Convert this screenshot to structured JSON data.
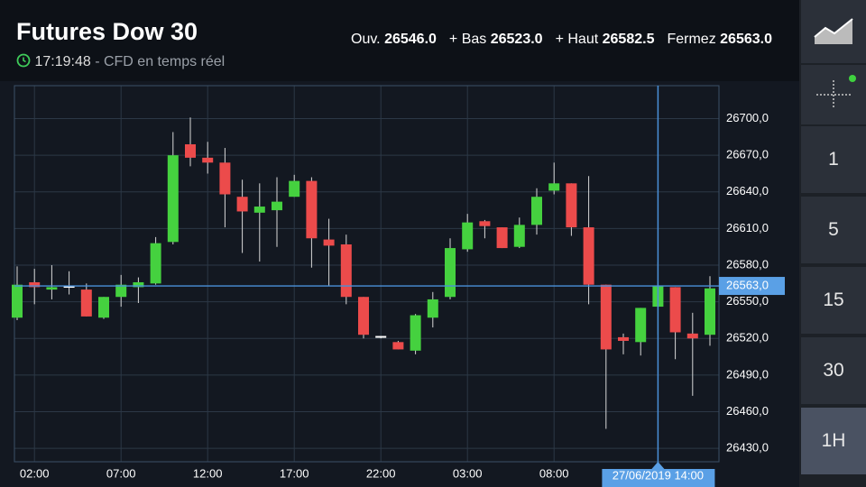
{
  "header": {
    "title": "Futures Dow 30",
    "time": "17:19:48",
    "subtitle": "- CFD en temps réel",
    "stats": [
      {
        "label": "Ouv.",
        "value": "26546.0"
      },
      {
        "label": "+ Bas",
        "value": "26523.0"
      },
      {
        "label": "+ Haut",
        "value": "26582.5"
      },
      {
        "label": "Fermez",
        "value": "26563.0"
      }
    ]
  },
  "sidebar": {
    "buttons": [
      "1",
      "5",
      "15",
      "30",
      "1H"
    ],
    "selected": "1H"
  },
  "chart_data": {
    "type": "candlestick",
    "categories": [
      null,
      "02:00",
      null,
      null,
      null,
      null,
      "07:00",
      null,
      null,
      null,
      null,
      "12:00",
      null,
      null,
      null,
      null,
      "17:00",
      null,
      null,
      null,
      null,
      "22:00",
      null,
      null,
      null,
      null,
      "03:00",
      null,
      null,
      null,
      null,
      "08:00",
      null,
      null,
      null,
      null,
      null,
      null,
      null,
      null,
      null
    ],
    "series": [
      {
        "up_color": "#45d13f",
        "down_color": "#ec4b4b",
        "open": [
          26537,
          26566,
          26560,
          26563,
          26560,
          26537,
          26554,
          26562,
          26565,
          26599,
          26679,
          26668,
          26664,
          26636,
          26623,
          26625,
          26636,
          26649,
          26601,
          26597,
          26554,
          26521,
          26517,
          26510,
          26537,
          26554,
          26593,
          26616,
          26611,
          26595,
          26613,
          26641,
          26647,
          26611,
          26564,
          26521,
          26517,
          26546,
          26562,
          26524,
          26523
        ],
        "high": [
          26579,
          26577,
          26580,
          26575,
          26565,
          26554,
          26572,
          26570,
          26603,
          26689,
          26701,
          26681,
          26676,
          26650,
          26647,
          26652,
          26654,
          26652,
          26618,
          26605,
          26554,
          26522,
          26518,
          26540,
          26558,
          26602,
          26622,
          26617,
          26611,
          26619,
          26643,
          26664,
          26647,
          26653,
          26564,
          26524,
          26545,
          26582.5,
          26562,
          26541,
          26571
        ],
        "low": [
          26535,
          26548,
          26552,
          26556,
          26538,
          26536,
          26546,
          26549,
          26564,
          26597,
          26661,
          26655,
          26611,
          26590,
          26583,
          26595,
          26636,
          26578,
          26563,
          26548,
          26520,
          26520,
          26511,
          26507,
          26529,
          26552,
          26591,
          26602,
          26594,
          26594,
          26605,
          26638,
          26604,
          26548,
          26446,
          26507,
          26506,
          26523,
          26503,
          26473,
          26514
        ],
        "close": [
          26564,
          26562,
          26562,
          26562,
          26538,
          26554,
          26564,
          26566,
          26598,
          26670,
          26668,
          26664,
          26638,
          26624,
          26628,
          26632,
          26649,
          26602,
          26596,
          26554,
          26523,
          26522,
          26511,
          26539,
          26552,
          26594,
          26615,
          26612,
          26594,
          26613,
          26636,
          26647,
          26611,
          26564,
          26511,
          26518,
          26545,
          26563,
          26525,
          26520,
          26561
        ]
      }
    ],
    "ylim": [
      26419,
      26727
    ],
    "yticks": [
      {
        "value": 26430,
        "label": "26430,0"
      },
      {
        "value": 26460,
        "label": "26460,0"
      },
      {
        "value": 26490,
        "label": "26490,0"
      },
      {
        "value": 26520,
        "label": "26520,0"
      },
      {
        "value": 26550,
        "label": "26550,0"
      },
      {
        "value": 26580,
        "label": "26580,0"
      },
      {
        "value": 26610,
        "label": "26610,0"
      },
      {
        "value": 26640,
        "label": "26640,0"
      },
      {
        "value": 26670,
        "label": "26670,0"
      },
      {
        "value": 26700,
        "label": "26700,0"
      }
    ],
    "grid": true,
    "last_price": {
      "value": 26563,
      "label": "26563,0"
    },
    "crosshair_label": "27/06/2019 14:00"
  }
}
